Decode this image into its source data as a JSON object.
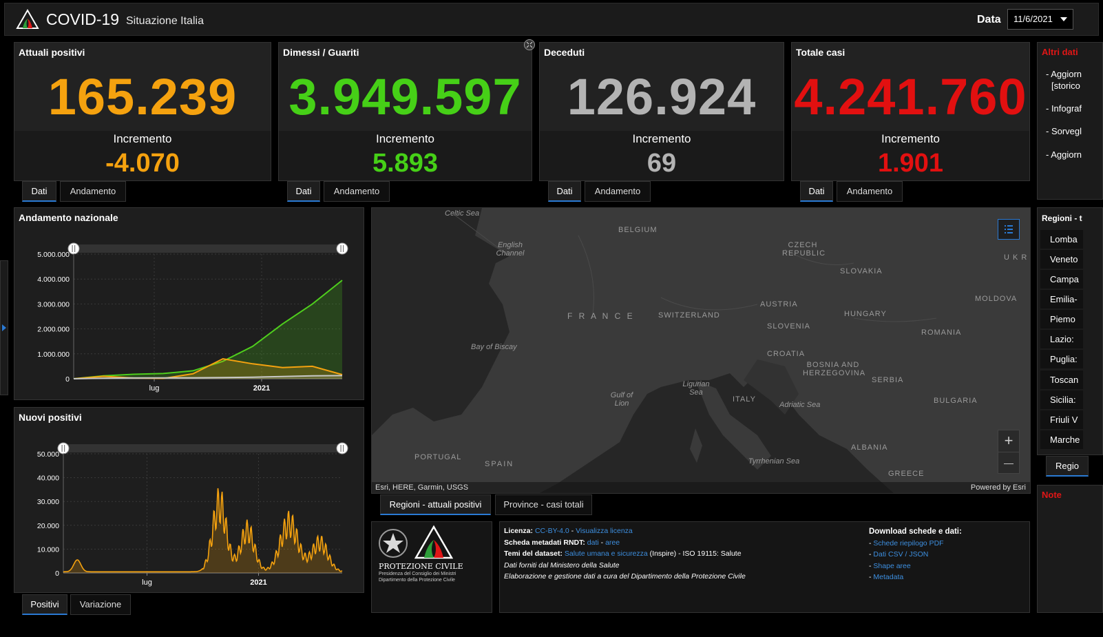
{
  "header": {
    "title": "COVID-19",
    "subtitle": "Situazione Italia",
    "date_label": "Data",
    "date_value": "11/6/2021"
  },
  "stats": [
    {
      "title": "Attuali positivi",
      "value": "165.239",
      "inc_label": "Incremento",
      "inc_value": "-4.070",
      "color": "#f5a20f",
      "tabs": [
        "Dati",
        "Andamento"
      ]
    },
    {
      "title": "Dimessi / Guariti",
      "value": "3.949.597",
      "inc_label": "Incremento",
      "inc_value": "5.893",
      "color": "#46d017",
      "tabs": [
        "Dati",
        "Andamento"
      ]
    },
    {
      "title": "Deceduti",
      "value": "126.924",
      "inc_label": "Incremento",
      "inc_value": "69",
      "color": "#b3b3b3",
      "tabs": [
        "Dati",
        "Andamento"
      ]
    },
    {
      "title": "Totale casi",
      "value": "4.241.760",
      "inc_label": "Incremento",
      "inc_value": "1.901",
      "color": "#e21010",
      "tabs": [
        "Dati",
        "Andamento"
      ]
    }
  ],
  "chart1": {
    "title": "Andamento nazionale",
    "chart_data": {
      "type": "line",
      "x": [
        "2020-02",
        "2020-04",
        "2020-06",
        "2020-08",
        "2020-10",
        "2020-11",
        "2020-12",
        "2021-02",
        "2021-04",
        "2021-06"
      ],
      "yticks": [
        "5.000.000",
        "4.000.000",
        "3.000.000",
        "2.000.000",
        "1.000.000",
        "0"
      ],
      "xticks": [
        "lug",
        "2021"
      ],
      "ylim": [
        0,
        5000000
      ],
      "series": [
        {
          "color": "#4fcf1d",
          "values": [
            0,
            120000,
            180000,
            210000,
            320000,
            700000,
            1300000,
            2200000,
            3000000,
            3949597
          ]
        },
        {
          "color": "#f5a20f",
          "values": [
            0,
            100000,
            30000,
            15000,
            200000,
            800000,
            600000,
            450000,
            500000,
            165239
          ]
        },
        {
          "color": "#c8c8c8",
          "values": [
            0,
            20000,
            34000,
            35000,
            38000,
            48000,
            64000,
            92000,
            115000,
            126924
          ]
        }
      ]
    }
  },
  "chart2": {
    "title": "Nuovi positivi",
    "chart_data": {
      "type": "area",
      "yticks": [
        "50.000",
        "40.000",
        "30.000",
        "20.000",
        "10.000",
        "0"
      ],
      "xticks": [
        "lug",
        "2021"
      ],
      "ylim": [
        0,
        50000
      ],
      "color": "#f5a20f"
    },
    "tabs": [
      "Positivi",
      "Variazione"
    ]
  },
  "map": {
    "labels": [
      {
        "t": "Celtic Sea",
        "sea": true
      },
      {
        "t": "BELGIUM"
      },
      {
        "t": "English Channel",
        "sea": true
      },
      {
        "t": "CZECH REPUBLIC"
      },
      {
        "t": "U K R"
      },
      {
        "t": "SLOVAKIA"
      },
      {
        "t": "MOLDOVA"
      },
      {
        "t": "F R A N C E"
      },
      {
        "t": "SWITZERLAND"
      },
      {
        "t": "AUSTRIA"
      },
      {
        "t": "HUNGARY"
      },
      {
        "t": "SLOVENIA"
      },
      {
        "t": "ROMANIA"
      },
      {
        "t": "Bay of Biscay",
        "sea": true
      },
      {
        "t": "CROATIA"
      },
      {
        "t": "BOSNIA AND HERZEGOVINA"
      },
      {
        "t": "Ligurian Sea",
        "sea": true
      },
      {
        "t": "Gulf of Lion",
        "sea": true
      },
      {
        "t": "ITALY"
      },
      {
        "t": "SERBIA"
      },
      {
        "t": "Adriatic Sea",
        "sea": true
      },
      {
        "t": "BULGARIA"
      },
      {
        "t": "PORTUGAL"
      },
      {
        "t": "SPAIN"
      },
      {
        "t": "ALBANIA"
      },
      {
        "t": "Tyrrhenian Sea",
        "sea": true
      },
      {
        "t": "GREECE"
      }
    ],
    "attribution_left": "Esri, HERE, Garmin, USGS",
    "attribution_right": "Powered by Esri",
    "zoom_in": "+",
    "zoom_out": "—",
    "tabs": [
      "Regioni - attuali positivi",
      "Province - casi totali"
    ]
  },
  "logo": {
    "org": "PROTEZIONE CIVILE",
    "sub1": "Presidenza del Consiglio dei Ministri",
    "sub2": "Dipartimento della Protezione Civile"
  },
  "info": {
    "license_label": "Licenza:",
    "license_link1": "CC-BY-4.0",
    "license_link2": "Visualizza licenza",
    "rndt_label": "Scheda metadati RNDT:",
    "rndt_link1": "dati",
    "rndt_link2": "aree",
    "temi_label": "Temi del dataset:",
    "temi_link": "Salute umana e sicurezza",
    "temi_rest": "(Inspire) - ISO 19115: Salute",
    "source": "Dati forniti dal Ministero della Salute",
    "elab": "Elaborazione e gestione dati a cura del Dipartimento della Protezione Civile",
    "download_title": "Download schede e dati:",
    "downloads": [
      "Schede riepilogo PDF",
      "Dati CSV / JSON",
      "Shape aree",
      "Metadata"
    ]
  },
  "side": {
    "altri": "Altri dati",
    "items": [
      "- Aggiorn",
      "[storico",
      "- Infograf",
      "- Sorvegl",
      "- Aggiorn"
    ],
    "regioni_title": "Regioni - t",
    "regions": [
      "Lomba",
      "Veneto",
      "Campa",
      "Emilia-",
      "Piemo",
      "Lazio:",
      "Puglia:",
      "Toscan",
      "Sicilia:",
      "Friuli V",
      "Marche"
    ],
    "regioni_tab": "Regio",
    "note": "Note"
  }
}
